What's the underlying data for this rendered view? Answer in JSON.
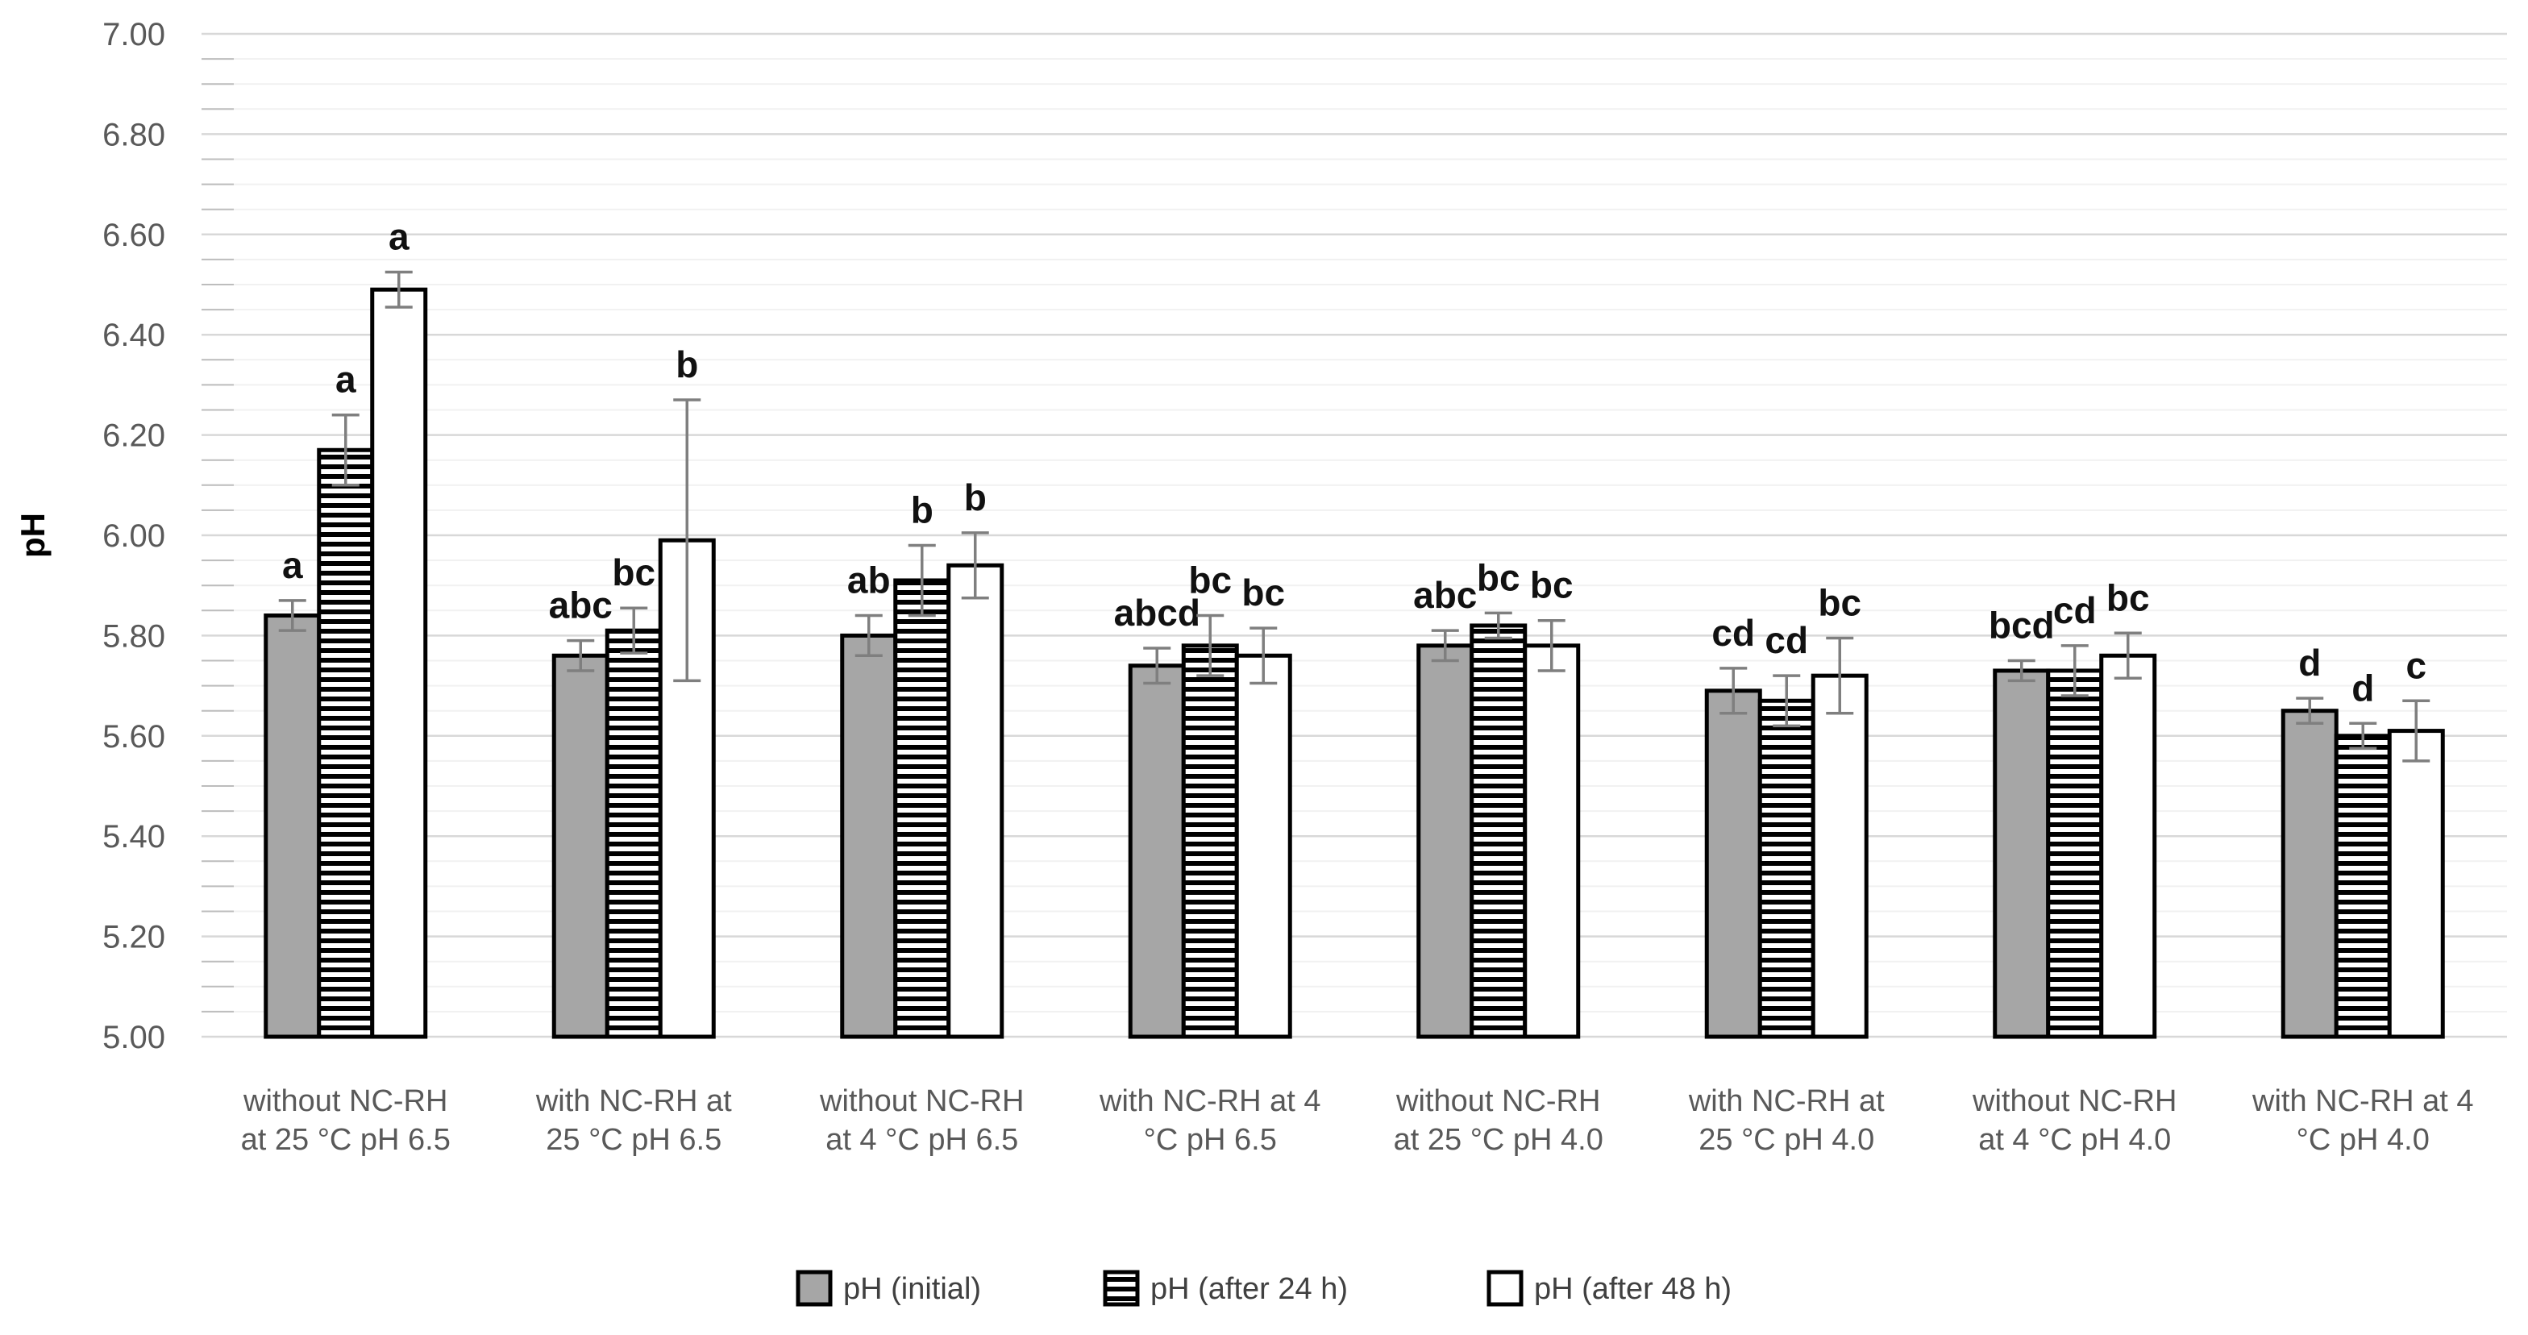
{
  "chart_data": {
    "type": "bar",
    "title": "",
    "ylabel": "pH",
    "ylim": [
      5.0,
      7.0
    ],
    "ytick_step_major": 0.2,
    "ytick_step_minor": 0.05,
    "ytick_labels": [
      "5.00",
      "5.20",
      "5.40",
      "5.60",
      "5.80",
      "6.00",
      "6.20",
      "6.40",
      "6.60",
      "6.80",
      "7.00"
    ],
    "grid": "horizontal-major-and-minor",
    "legend_position": "bottom-center",
    "categories": [
      [
        "without NC-RH",
        "at 25 °C pH 6.5"
      ],
      [
        "with NC-RH at",
        "25 °C pH 6.5"
      ],
      [
        "without NC-RH",
        "at 4 °C pH 6.5"
      ],
      [
        "with NC-RH at 4",
        "°C pH 6.5"
      ],
      [
        "without NC-RH",
        "at 25 °C pH 4.0"
      ],
      [
        "with NC-RH at",
        "25 °C pH 4.0"
      ],
      [
        "without NC-RH",
        "at 4 °C pH 4.0"
      ],
      [
        "with NC-RH at 4",
        "°C pH 4.0"
      ]
    ],
    "series": [
      {
        "name": "pH (initial)",
        "style": "gray-solid",
        "values": [
          5.84,
          5.76,
          5.8,
          5.74,
          5.78,
          5.69,
          5.73,
          5.65
        ],
        "errors": [
          0.03,
          0.03,
          0.04,
          0.035,
          0.03,
          0.045,
          0.02,
          0.025
        ],
        "letters": [
          "a",
          "abc",
          "ab",
          "abcd",
          "abc",
          "cd",
          "bcd",
          "d"
        ]
      },
      {
        "name": "pH (after 24 h)",
        "style": "horizontal-stripes",
        "values": [
          6.17,
          5.81,
          5.91,
          5.78,
          5.82,
          5.67,
          5.73,
          5.6
        ],
        "errors": [
          0.07,
          0.045,
          0.07,
          0.06,
          0.025,
          0.05,
          0.05,
          0.025
        ],
        "letters": [
          "a",
          "bc",
          "b",
          "bc",
          "bc",
          "cd",
          "cd",
          "d"
        ]
      },
      {
        "name": "pH (after 48 h)",
        "style": "white",
        "values": [
          6.49,
          5.99,
          5.94,
          5.76,
          5.78,
          5.72,
          5.76,
          5.61
        ],
        "errors": [
          0.035,
          0.28,
          0.065,
          0.055,
          0.05,
          0.075,
          0.045,
          0.06
        ],
        "letters": [
          "a",
          "b",
          "b",
          "bc",
          "bc",
          "bc",
          "bc",
          "c"
        ]
      }
    ]
  },
  "colors": {
    "bar_gray": "#a6a6a6",
    "bar_white": "#ffffff",
    "bar_border": "#000000",
    "stripe_black": "#000000",
    "major_gridline": "#d8d8d8",
    "minor_gridline": "#f1f1f1",
    "minor_tick": "#bdbdbd",
    "axis_text": "#595959",
    "error_bar": "#7f7f7f",
    "background": "#ffffff"
  }
}
